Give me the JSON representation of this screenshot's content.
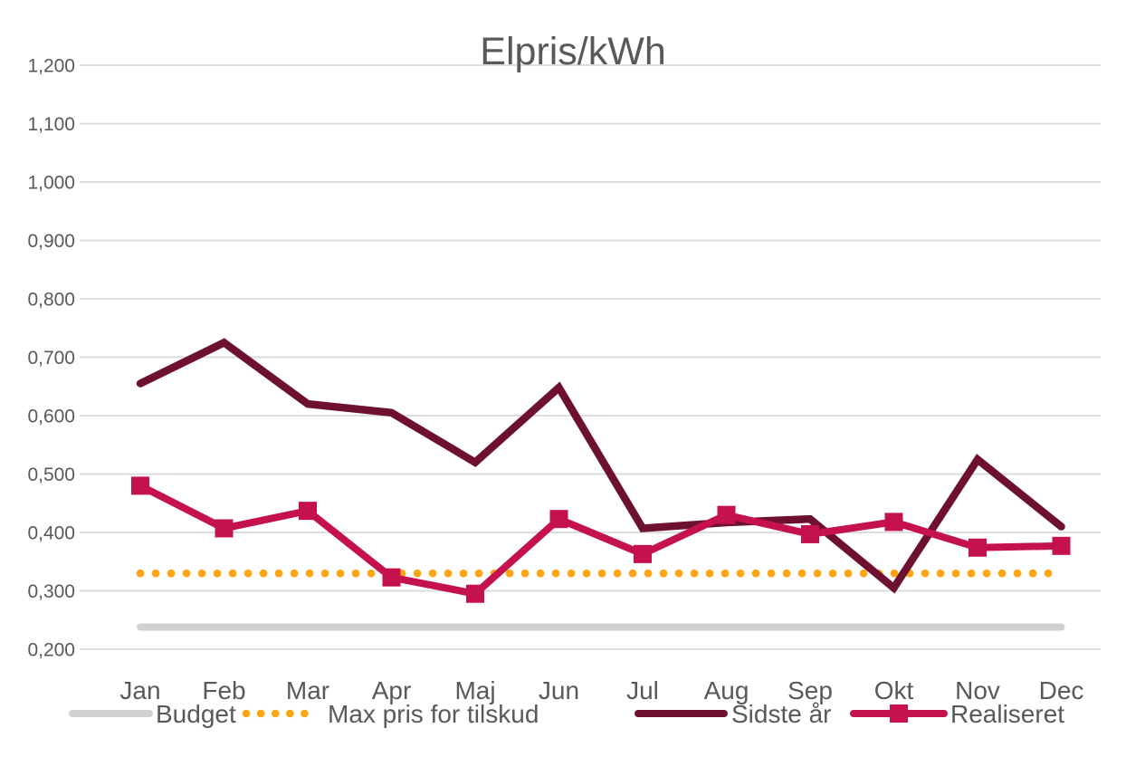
{
  "chart_data": {
    "type": "line",
    "title": "Elpris/kWh",
    "categories": [
      "Jan",
      "Feb",
      "Mar",
      "Apr",
      "Maj",
      "Jun",
      "Jul",
      "Aug",
      "Sep",
      "Okt",
      "Nov",
      "Dec"
    ],
    "y_axis": {
      "min": 0.2,
      "max": 1.2,
      "step": 0.1,
      "decimal_separator": ",",
      "tick_labels": [
        "0,200",
        "0,300",
        "0,400",
        "0,500",
        "0,600",
        "0,700",
        "0,800",
        "0,900",
        "1,000",
        "1,100",
        "1,200"
      ],
      "tick_values": [
        0.2,
        0.3,
        0.4,
        0.5,
        0.6,
        0.7,
        0.8,
        0.9,
        1.0,
        1.1,
        1.2
      ]
    },
    "grid": true,
    "legend_position": "bottom",
    "series": [
      {
        "name": "Budget",
        "style": "solid-thick",
        "color": "#D1D1D1",
        "values": [
          0.238,
          0.238,
          0.238,
          0.238,
          0.238,
          0.238,
          0.238,
          0.238,
          0.238,
          0.238,
          0.238,
          0.238
        ]
      },
      {
        "name": "Max pris for tilskud",
        "style": "dotted",
        "color": "#FFA514",
        "values": [
          0.33,
          0.33,
          0.33,
          0.33,
          0.33,
          0.33,
          0.33,
          0.33,
          0.33,
          0.33,
          0.33,
          0.33
        ]
      },
      {
        "name": "Sidste år",
        "style": "solid",
        "color": "#6E1130",
        "values": [
          0.655,
          0.725,
          0.62,
          0.605,
          0.52,
          0.648,
          0.407,
          0.417,
          0.423,
          0.305,
          0.525,
          0.41
        ]
      },
      {
        "name": "Realiseret",
        "style": "solid-square-markers",
        "color": "#C5114E",
        "values": [
          0.48,
          0.407,
          0.437,
          0.323,
          0.295,
          0.423,
          0.363,
          0.43,
          0.397,
          0.418,
          0.374,
          0.377
        ]
      }
    ],
    "text_color": "#595959",
    "gridline_color": "#D9D9D9"
  }
}
